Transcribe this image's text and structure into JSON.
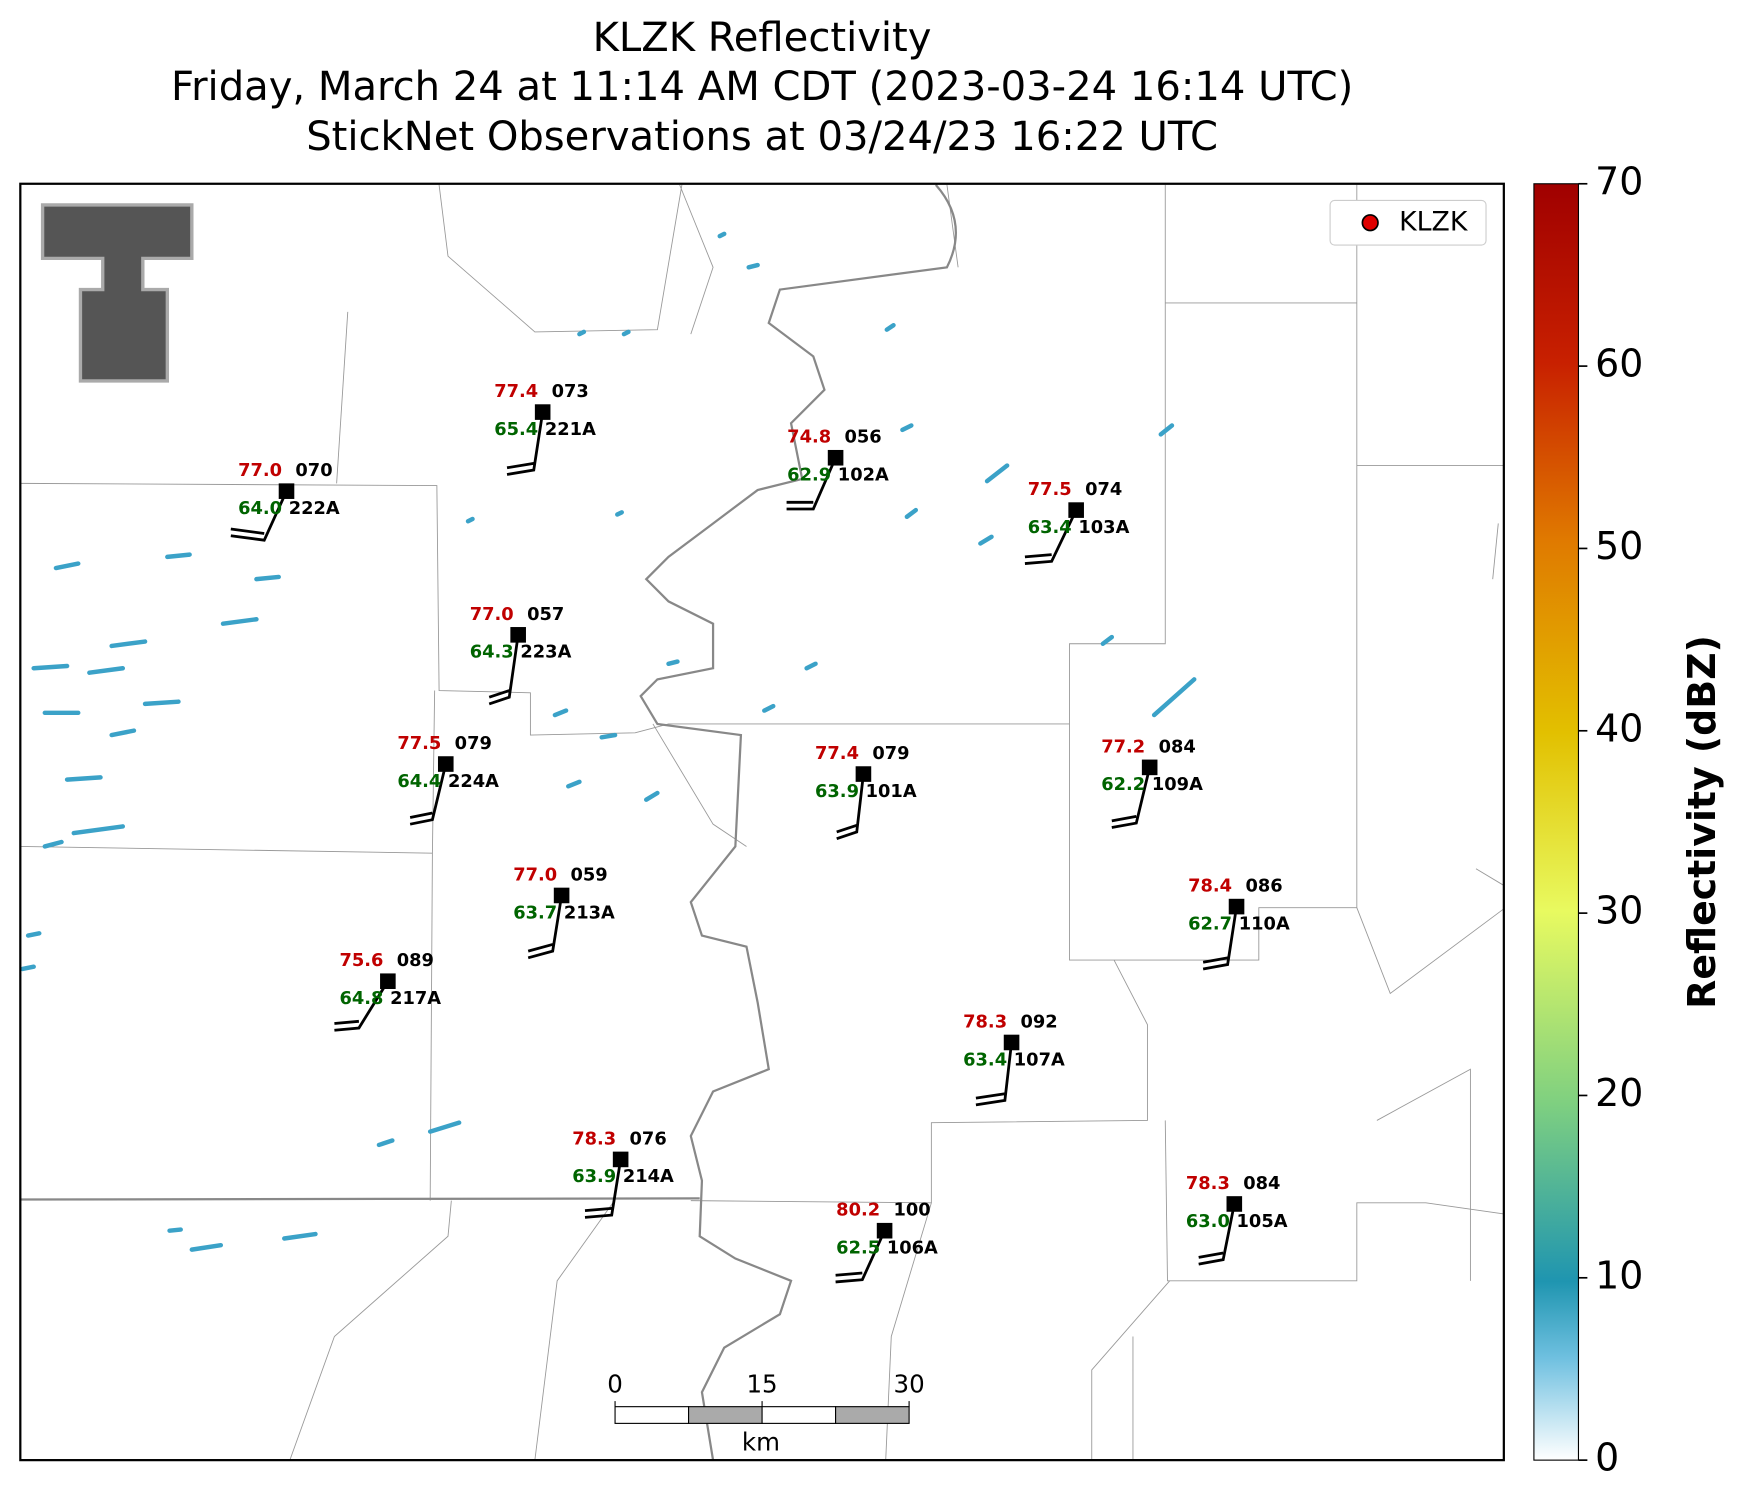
{
  "title": [
    "KLZK Reflectivity",
    "Friday, March 24 at 11:14 AM CDT (2023-03-24 16:14 UTC)",
    "StickNet Observations at 03/24/23 16:22 UTC"
  ],
  "legend": {
    "label": "KLZK",
    "color": "#e00000"
  },
  "colorbar": {
    "label": "Reflectivity (dBZ)",
    "lim": [
      0,
      70
    ],
    "ticks": [
      0,
      10,
      20,
      30,
      40,
      50,
      60,
      70
    ]
  },
  "scale_bar": {
    "lim": [
      0,
      30
    ],
    "ticks": [
      0,
      15,
      30
    ],
    "unit": "km"
  },
  "stations": [
    {
      "temp": "77.0",
      "pressure": "070",
      "dewpoint": "64.0",
      "id": "222A"
    },
    {
      "temp": "77.4",
      "pressure": "073",
      "dewpoint": "65.4",
      "id": "221A"
    },
    {
      "temp": "74.8",
      "pressure": "056",
      "dewpoint": "62.9",
      "id": "102A"
    },
    {
      "temp": "77.5",
      "pressure": "074",
      "dewpoint": "63.4",
      "id": "103A"
    },
    {
      "temp": "77.0",
      "pressure": "057",
      "dewpoint": "64.3",
      "id": "223A"
    },
    {
      "temp": "77.5",
      "pressure": "079",
      "dewpoint": "64.4",
      "id": "224A"
    },
    {
      "temp": "77.4",
      "pressure": "079",
      "dewpoint": "63.9",
      "id": "101A"
    },
    {
      "temp": "77.2",
      "pressure": "084",
      "dewpoint": "62.2",
      "id": "109A"
    },
    {
      "temp": "77.0",
      "pressure": "059",
      "dewpoint": "63.7",
      "id": "213A"
    },
    {
      "temp": "78.4",
      "pressure": "086",
      "dewpoint": "62.7",
      "id": "110A"
    },
    {
      "temp": "75.6",
      "pressure": "089",
      "dewpoint": "64.8",
      "id": "217A"
    },
    {
      "temp": "78.3",
      "pressure": "092",
      "dewpoint": "63.4",
      "id": "107A"
    },
    {
      "temp": "78.3",
      "pressure": "076",
      "dewpoint": "63.9",
      "id": "214A"
    },
    {
      "temp": "80.2",
      "pressure": "100",
      "dewpoint": "62.5",
      "id": "106A"
    },
    {
      "temp": "78.3",
      "pressure": "084",
      "dewpoint": "63.0",
      "id": "105A"
    }
  ]
}
